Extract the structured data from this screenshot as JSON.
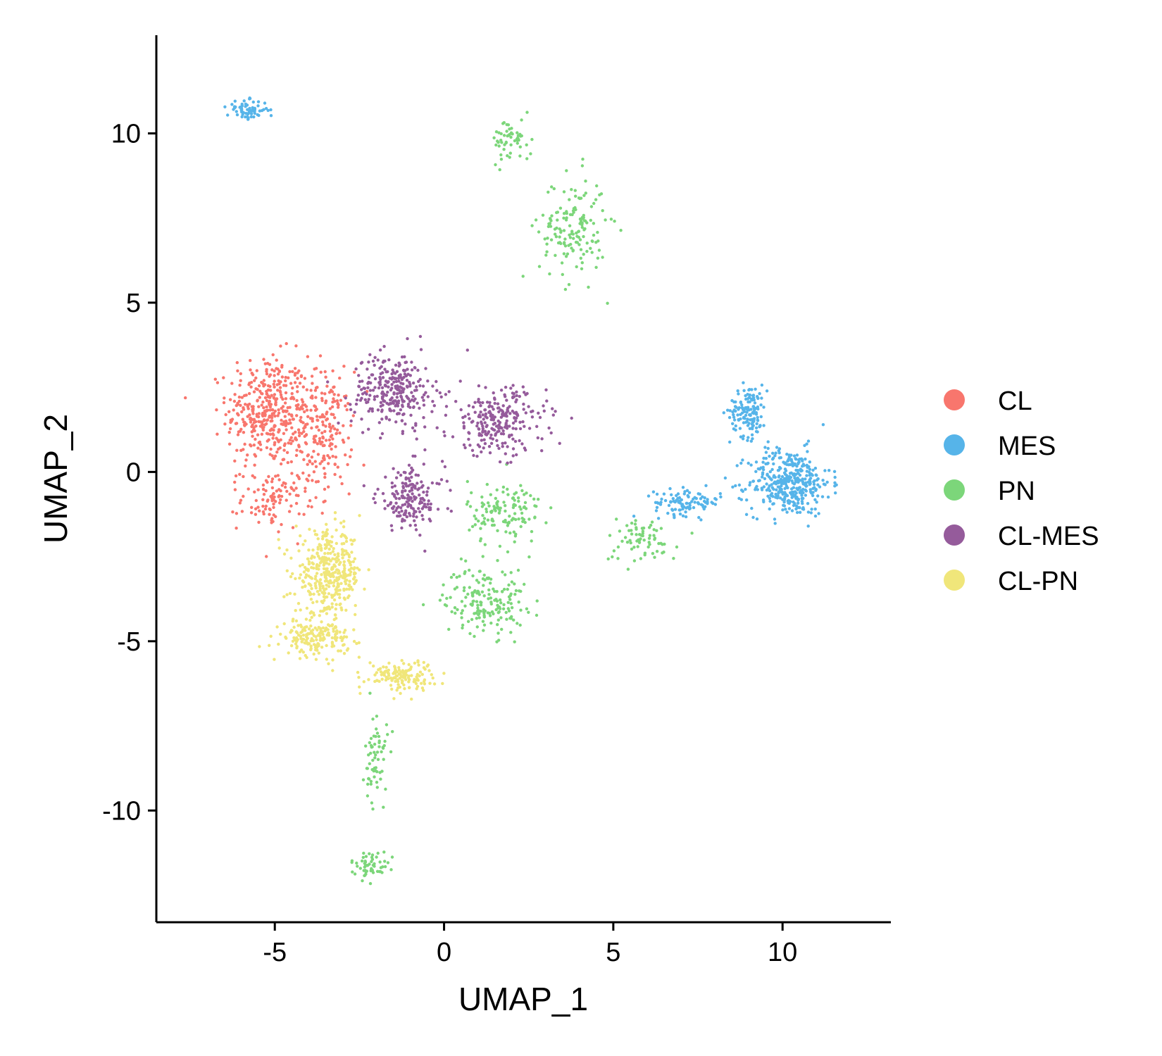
{
  "chart_data": {
    "type": "scatter",
    "title": "",
    "xlabel": "UMAP_1",
    "ylabel": "UMAP_2",
    "xlim": [
      -8.5,
      13.2
    ],
    "ylim": [
      -13.3,
      12.9
    ],
    "xticks": [
      -5,
      0,
      5,
      10
    ],
    "yticks": [
      -10,
      -5,
      0,
      5,
      10
    ],
    "xtick_labels": [
      "-5",
      "0",
      "5",
      "10"
    ],
    "ytick_labels": [
      "-10",
      "-5",
      "0",
      "5",
      "10"
    ],
    "grid": false,
    "legend_position": "right",
    "series": [
      {
        "name": "CL",
        "color": "#F8766D",
        "clusters": [
          {
            "center": [
              -5.2,
              1.8
            ],
            "spread": [
              1.1,
              1.5
            ],
            "weight": 0.55
          },
          {
            "center": [
              -3.6,
              1.2
            ],
            "spread": [
              0.8,
              1.6
            ],
            "weight": 0.3
          },
          {
            "center": [
              -5.0,
              -0.8
            ],
            "spread": [
              0.9,
              0.8
            ],
            "weight": 0.15
          }
        ]
      },
      {
        "name": "MES",
        "color": "#56B4E9",
        "clusters": [
          {
            "center": [
              10.2,
              -0.3
            ],
            "spread": [
              1.1,
              0.9
            ],
            "weight": 0.55
          },
          {
            "center": [
              9.0,
              1.8
            ],
            "spread": [
              0.5,
              0.7
            ],
            "weight": 0.2
          },
          {
            "center": [
              7.2,
              -0.9
            ],
            "spread": [
              0.9,
              0.35
            ],
            "weight": 0.15
          },
          {
            "center": [
              -5.8,
              10.7
            ],
            "spread": [
              0.55,
              0.25
            ],
            "weight": 0.1
          }
        ]
      },
      {
        "name": "PN",
        "color": "#7CD67A",
        "clusters": [
          {
            "center": [
              3.8,
              7.2
            ],
            "spread": [
              0.9,
              1.4
            ],
            "weight": 0.22
          },
          {
            "center": [
              2.0,
              9.8
            ],
            "spread": [
              0.55,
              0.6
            ],
            "weight": 0.08
          },
          {
            "center": [
              1.2,
              -3.8
            ],
            "spread": [
              1.1,
              0.9
            ],
            "weight": 0.25
          },
          {
            "center": [
              1.8,
              -1.2
            ],
            "spread": [
              1.0,
              0.9
            ],
            "weight": 0.18
          },
          {
            "center": [
              -2.0,
              -8.5
            ],
            "spread": [
              0.3,
              1.3
            ],
            "weight": 0.09
          },
          {
            "center": [
              -2.2,
              -11.6
            ],
            "spread": [
              0.5,
              0.35
            ],
            "weight": 0.08
          },
          {
            "center": [
              5.8,
              -2.0
            ],
            "spread": [
              1.0,
              0.6
            ],
            "weight": 0.1
          }
        ]
      },
      {
        "name": "CL-MES",
        "color": "#955B9B",
        "clusters": [
          {
            "center": [
              -1.5,
              2.4
            ],
            "spread": [
              1.1,
              1.0
            ],
            "weight": 0.4
          },
          {
            "center": [
              1.6,
              1.5
            ],
            "spread": [
              1.3,
              0.9
            ],
            "weight": 0.35
          },
          {
            "center": [
              -1.0,
              -0.8
            ],
            "spread": [
              0.9,
              0.9
            ],
            "weight": 0.25
          }
        ]
      },
      {
        "name": "CL-PN",
        "color": "#F0E67A",
        "clusters": [
          {
            "center": [
              -3.4,
              -3.0
            ],
            "spread": [
              0.9,
              1.1
            ],
            "weight": 0.55
          },
          {
            "center": [
              -3.8,
              -4.9
            ],
            "spread": [
              0.9,
              0.5
            ],
            "weight": 0.25
          },
          {
            "center": [
              -1.3,
              -6.0
            ],
            "spread": [
              0.9,
              0.4
            ],
            "weight": 0.2
          }
        ]
      }
    ]
  }
}
